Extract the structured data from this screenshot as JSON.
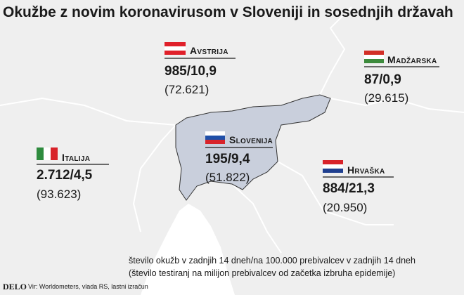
{
  "header": {
    "title": "Okužbe z novim koronavirusom v Sloveniji in sosednjih državah"
  },
  "countries": [
    {
      "name": "Avstrija",
      "stat": "985/10,9",
      "tests": "(72.621)"
    },
    {
      "name": "Madžarska",
      "stat": "87/0,9",
      "tests": "(29.615)"
    },
    {
      "name": "Slovenija",
      "stat": "195/9,4",
      "tests": "(51.822)"
    },
    {
      "name": "Italija",
      "stat": "2.712/4,5",
      "tests": "(93.623)"
    },
    {
      "name": "Hrvaška",
      "stat": "884/21,3",
      "tests": "(20.950)"
    }
  ],
  "legend": [
    "število okužb v zadnjih 14 dneh/na 100.000 prebivalcev v zadnjih 14 dneh",
    "(število testiranj na milijon prebivalcev od začetka izbruha epidemije)"
  ],
  "footer": {
    "logo": "DELO",
    "source": "Vir: Worldometers, vlada RS, lastni izračun"
  }
}
